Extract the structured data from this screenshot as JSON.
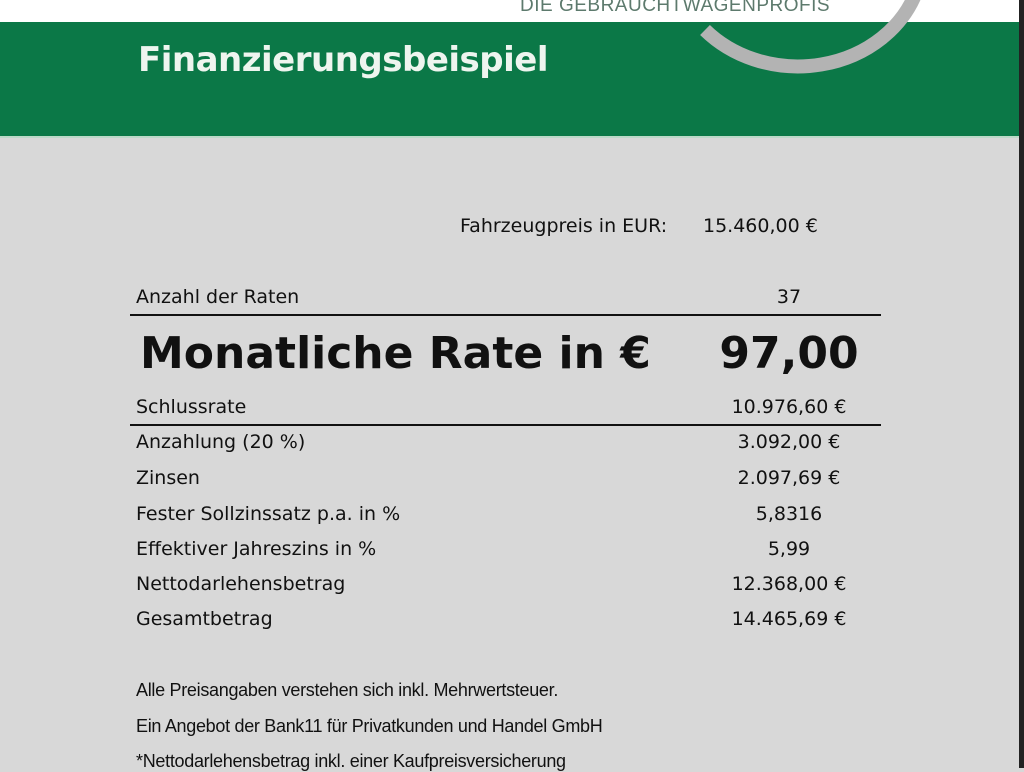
{
  "header": {
    "logo_text": "DIE GEBRAUCHTWAGENPROFIS",
    "title": "Finanzierungsbeispiel",
    "brand_color": "#0b7847"
  },
  "price": {
    "label": "Fahrzeugpreis in EUR:",
    "value": "15.460,00 €"
  },
  "rows": [
    {
      "label": "Anzahl der Raten",
      "value": "37"
    },
    {
      "label": "Monatliche Rate in €",
      "value": "97,00"
    },
    {
      "label": "Schlussrate",
      "value": "10.976,60 €"
    },
    {
      "label": "Anzahlung (20 %)",
      "value": "3.092,00 €"
    },
    {
      "label": "Zinsen",
      "value": "2.097,69 €"
    },
    {
      "label": "Fester Sollzinssatz p.a. in %",
      "value": "5,8316"
    },
    {
      "label": "Effektiver Jahreszins in %",
      "value": "5,99"
    },
    {
      "label": "Nettodarlehensbetrag",
      "value": "12.368,00 €"
    },
    {
      "label": "Gesamtbetrag",
      "value": "14.465,69 €"
    }
  ],
  "footer": [
    "Alle Preisangaben verstehen sich inkl. Mehrwertsteuer.",
    "Ein Angebot der Bank11 für Privatkunden und Handel GmbH",
    "*Nettodarlehensbetrag inkl. einer Kaufpreisversicherung"
  ]
}
